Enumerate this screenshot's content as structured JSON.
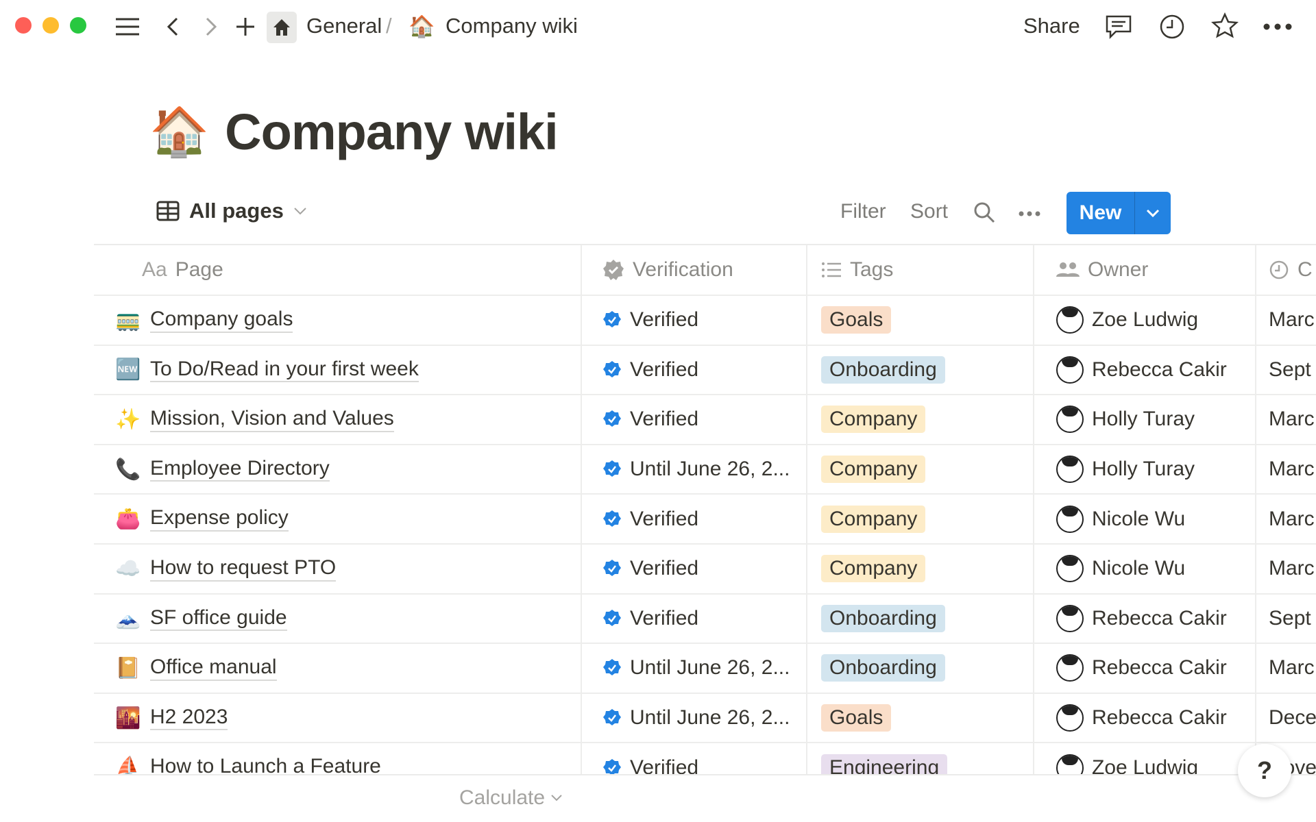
{
  "window": {
    "traffic_lights": [
      "#fe5f57",
      "#febc2e",
      "#28c840"
    ]
  },
  "topbar": {
    "breadcrumb_parent": "General",
    "separator": "/",
    "breadcrumb_current": "Company wiki",
    "breadcrumb_emoji": "🏠",
    "share": "Share"
  },
  "page": {
    "emoji": "🏠",
    "title": "Company wiki"
  },
  "view": {
    "name": "All pages",
    "filter": "Filter",
    "sort": "Sort",
    "new": "New"
  },
  "columns": {
    "page": "Page",
    "page_prefix": "Aa",
    "verification": "Verification",
    "tags": "Tags",
    "owner": "Owner",
    "created": "C"
  },
  "tag_colors": {
    "Goals": "#fadec9",
    "Onboarding": "#d3e5ef",
    "Company": "#fdecc8",
    "Engineering": "#e8deee"
  },
  "rows": [
    {
      "emoji": "🚃",
      "page": "Company goals",
      "verification": "Verified",
      "tag": "Goals",
      "owner": "Zoe Ludwig",
      "date": "Marc"
    },
    {
      "emoji": "🆕",
      "page": "To Do/Read in your first week",
      "verification": "Verified",
      "tag": "Onboarding",
      "owner": "Rebecca Cakir",
      "date": "Sept"
    },
    {
      "emoji": "✨",
      "page": "Mission, Vision and Values",
      "verification": "Verified",
      "tag": "Company",
      "owner": "Holly Turay",
      "date": "Marc"
    },
    {
      "emoji": "📞",
      "page": "Employee Directory",
      "verification": "Until June 26, 2...",
      "tag": "Company",
      "owner": "Holly Turay",
      "date": "Marc"
    },
    {
      "emoji": "👛",
      "page": "Expense policy",
      "verification": "Verified",
      "tag": "Company",
      "owner": "Nicole Wu",
      "date": "Marc"
    },
    {
      "emoji": "☁️",
      "page": "How to request PTO",
      "verification": "Verified",
      "tag": "Company",
      "owner": "Nicole Wu",
      "date": "Marc"
    },
    {
      "emoji": "🗻",
      "page": "SF office guide",
      "verification": "Verified",
      "tag": "Onboarding",
      "owner": "Rebecca Cakir",
      "date": "Sept"
    },
    {
      "emoji": "📔",
      "page": "Office manual",
      "verification": "Until June 26, 2...",
      "tag": "Onboarding",
      "owner": "Rebecca Cakir",
      "date": "Marc"
    },
    {
      "emoji": "🌇",
      "page": "H2 2023",
      "verification": "Until June 26, 2...",
      "tag": "Goals",
      "owner": "Rebecca Cakir",
      "date": "Dece"
    },
    {
      "emoji": "⛵",
      "page": "How to Launch a Feature",
      "verification": "Verified",
      "tag": "Engineering",
      "owner": "Zoe Ludwig",
      "date": "Nove"
    }
  ],
  "footer": {
    "calculate": "Calculate",
    "help": "?"
  },
  "accent": "#2383e2"
}
